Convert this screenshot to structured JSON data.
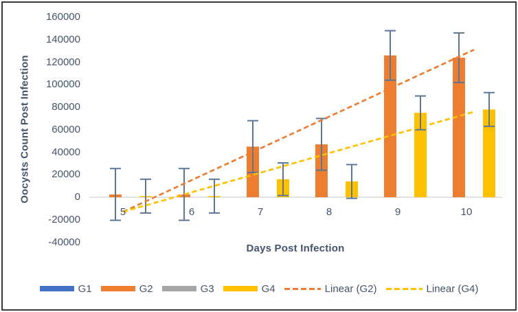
{
  "figure": {
    "background": "#FFFFFF",
    "border_color": "#3A3A3A",
    "text_color": "#44546A",
    "axis_line_color": "#D9D9D9",
    "error_bar_color": "#5D7793"
  },
  "chart_data": {
    "type": "bar",
    "title": "",
    "xlabel": "Days Post Infection",
    "ylabel": "Oocysts Count Post Infection",
    "categories": [
      "5",
      "6",
      "7",
      "8",
      "9",
      "10"
    ],
    "ylim": [
      -40000,
      160000
    ],
    "ytick_step": 20000,
    "grid": false,
    "legend_position": "bottom",
    "series": [
      {
        "name": "G1",
        "color": "#4472C4",
        "values": [
          0,
          0,
          0,
          0,
          0,
          0
        ]
      },
      {
        "name": "G2",
        "color": "#ED7D31",
        "values": [
          2500,
          2500,
          45000,
          47000,
          126000,
          124000
        ],
        "errors": [
          23000,
          23000,
          23000,
          23000,
          22000,
          22000
        ]
      },
      {
        "name": "G3",
        "color": "#A6A6A6",
        "values": [
          0,
          0,
          0,
          0,
          0,
          0
        ]
      },
      {
        "name": "G4",
        "color": "#FFC000",
        "values": [
          1000,
          1000,
          16000,
          14000,
          75000,
          78000
        ],
        "errors": [
          15000,
          15000,
          14500,
          15000,
          15000,
          15000
        ]
      }
    ],
    "trendlines": [
      {
        "name": "Linear (G2)",
        "color": "#ED7D31",
        "value_at_day5": -13000,
        "value_at_day10": 128000
      },
      {
        "name": "Linear (G4)",
        "color": "#FFC000",
        "value_at_day5": -13000,
        "value_at_day10": 74000
      }
    ]
  }
}
